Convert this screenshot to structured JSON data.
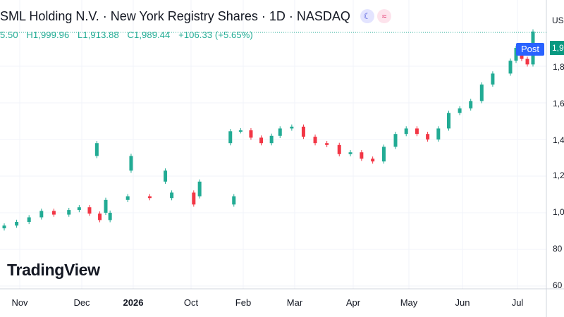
{
  "header": {
    "title": "SML Holding N.V. · New York Registry Shares · 1D · NASDAQ",
    "ohlc": {
      "open": "5.50",
      "high": "H1,999.96",
      "low": "L1,913.88",
      "close": "C1,989.44",
      "change": "+106.33 (+5.65%)"
    },
    "icons": [
      "moon-icon",
      "wave-icon"
    ]
  },
  "logo": "TradingView",
  "axis": {
    "currency": "US",
    "post_label": "Post",
    "post_value": "1,9",
    "y_ticks": [
      "1,8",
      "1,6",
      "1,4",
      "1,2",
      "1,0",
      "80",
      "60"
    ],
    "x_ticks": [
      "Oct",
      "Nov",
      "Dec",
      "2026",
      "Feb",
      "Mar",
      "Apr",
      "May",
      "Jun",
      "Jul"
    ]
  },
  "colors": {
    "up": "#22ab94",
    "down": "#f23645",
    "accent": "#2962ff"
  },
  "chart_data": {
    "type": "candlestick",
    "ylim": [
      600,
      2000
    ],
    "y_ticks": [
      600,
      800,
      1000,
      1200,
      1400,
      1600,
      1800
    ],
    "months": [
      "Oct",
      "Nov",
      "Dec",
      "2026",
      "Feb",
      "Mar",
      "Apr",
      "May",
      "Jun",
      "Jul"
    ],
    "series": [
      {
        "values": [
          [
            "Oct",
            930
          ],
          [
            "Oct",
            950
          ],
          [
            "Oct",
            975
          ],
          [
            "Oct",
            1010
          ],
          [
            "Oct",
            990
          ],
          [
            "Nov",
            1015
          ],
          [
            "Nov",
            1030
          ],
          [
            "Nov",
            995
          ],
          [
            "Nov",
            960
          ],
          [
            "Nov",
            1000
          ],
          [
            "Dec",
            1070
          ],
          [
            "Dec",
            1090
          ],
          [
            "Dec",
            1080
          ],
          [
            "Dec",
            1110
          ],
          [
            "Dec",
            1045
          ],
          [
            "2026",
            1090
          ],
          [
            "2026",
            1170
          ],
          [
            "2026",
            1230
          ],
          [
            "2026",
            1310
          ],
          [
            "2026",
            1380
          ],
          [
            "Feb",
            1445
          ],
          [
            "Feb",
            1450
          ],
          [
            "Feb",
            1410
          ],
          [
            "Feb",
            1380
          ],
          [
            "Feb",
            1420
          ],
          [
            "Mar",
            1460
          ],
          [
            "Mar",
            1470
          ],
          [
            "Mar",
            1415
          ],
          [
            "Mar",
            1380
          ],
          [
            "Mar",
            1370
          ],
          [
            "Apr",
            1320
          ],
          [
            "Apr",
            1330
          ],
          [
            "Apr",
            1295
          ],
          [
            "Apr",
            1280
          ],
          [
            "Apr",
            1360
          ],
          [
            "May",
            1430
          ],
          [
            "May",
            1460
          ],
          [
            "May",
            1430
          ],
          [
            "May",
            1400
          ],
          [
            "May",
            1460
          ],
          [
            "Jun",
            1545
          ],
          [
            "Jun",
            1570
          ],
          [
            "Jun",
            1610
          ],
          [
            "Jun",
            1700
          ],
          [
            "Jun",
            1760
          ],
          [
            "Jul",
            1830
          ],
          [
            "Jul",
            1900
          ],
          [
            "Jul",
            1840
          ],
          [
            "Jul",
            1810
          ],
          [
            "Jul",
            1989.44
          ]
        ]
      }
    ],
    "current_price_line": 1989.44,
    "grid": true
  }
}
